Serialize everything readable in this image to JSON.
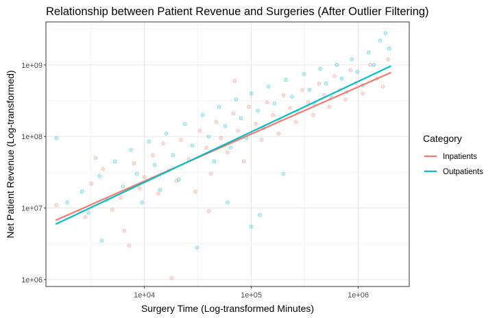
{
  "chart_data": {
    "type": "scatter",
    "title": "Relationship between Patient Revenue and Surgeries (After Outlier Filtering)",
    "xlabel": "Surgery Time (Log-transformed Minutes)",
    "ylabel": "Net Patient Revenue (Log-transformed)",
    "x_scale": "log10",
    "y_scale": "log10",
    "xlim": [
      1200,
      3000000
    ],
    "ylim": [
      800000,
      4000000000
    ],
    "x_ticks": [
      "1e+04",
      "1e+05",
      "1e+06"
    ],
    "x_tick_values": [
      10000,
      100000,
      1000000
    ],
    "y_ticks": [
      "1e+06",
      "1e+07",
      "1e+08",
      "1e+09"
    ],
    "y_tick_values": [
      1000000,
      10000000,
      100000000,
      1000000000
    ],
    "grid": true,
    "legend": {
      "title": "Category",
      "position": "right"
    },
    "series": [
      {
        "name": "Inpatients",
        "color": "#F8766D",
        "trend_line": {
          "x": [
            1500,
            2000000
          ],
          "y": [
            6800000,
            780000000
          ]
        },
        "points": [
          [
            1500,
            11000000
          ],
          [
            2500,
            9000000
          ],
          [
            3200,
            22000000
          ],
          [
            4100,
            35000000
          ],
          [
            5000,
            9500000
          ],
          [
            6000,
            14000000
          ],
          [
            7200,
            3000000
          ],
          [
            8000,
            42000000
          ],
          [
            9000,
            19000000
          ],
          [
            10000,
            27000000
          ],
          [
            12000,
            55000000
          ],
          [
            13500,
            16000000
          ],
          [
            15000,
            80000000
          ],
          [
            17000,
            34000000
          ],
          [
            20000,
            24000000
          ],
          [
            22000,
            90000000
          ],
          [
            26000,
            48000000
          ],
          [
            30000,
            17000000
          ],
          [
            33000,
            120000000
          ],
          [
            38000,
            70000000
          ],
          [
            42000,
            30000000
          ],
          [
            47000,
            160000000
          ],
          [
            52000,
            95000000
          ],
          [
            60000,
            60000000
          ],
          [
            68000,
            210000000
          ],
          [
            75000,
            120000000
          ],
          [
            85000,
            45000000
          ],
          [
            95000,
            260000000
          ],
          [
            110000,
            150000000
          ],
          [
            125000,
            90000000
          ],
          [
            140000,
            300000000
          ],
          [
            160000,
            200000000
          ],
          [
            180000,
            110000000
          ],
          [
            200000,
            380000000
          ],
          [
            230000,
            250000000
          ],
          [
            260000,
            160000000
          ],
          [
            300000,
            450000000
          ],
          [
            340000,
            300000000
          ],
          [
            380000,
            200000000
          ],
          [
            430000,
            550000000
          ],
          [
            480000,
            380000000
          ],
          [
            540000,
            260000000
          ],
          [
            600000,
            700000000
          ],
          [
            680000,
            450000000
          ],
          [
            760000,
            330000000
          ],
          [
            850000,
            850000000
          ],
          [
            950000,
            560000000
          ],
          [
            1100000,
            400000000
          ],
          [
            1300000,
            1000000000
          ],
          [
            1500000,
            650000000
          ],
          [
            1700000,
            500000000
          ],
          [
            1900000,
            1200000000
          ],
          [
            18000,
            1050000
          ],
          [
            6500,
            4800000
          ],
          [
            40000,
            9000000
          ],
          [
            3500,
            50000000
          ],
          [
            2800,
            7500000
          ],
          [
            70000,
            600000000
          ]
        ]
      },
      {
        "name": "Outpatients",
        "color": "#00BFC4",
        "trend_line": {
          "x": [
            1500,
            2000000
          ],
          "y": [
            6000000,
            960000000
          ]
        },
        "points": [
          [
            1500,
            95000000
          ],
          [
            1900,
            12000000
          ],
          [
            2600,
            17000000
          ],
          [
            3000,
            8500000
          ],
          [
            3800,
            28000000
          ],
          [
            4500,
            13000000
          ],
          [
            5300,
            45000000
          ],
          [
            6300,
            20000000
          ],
          [
            7500,
            65000000
          ],
          [
            8500,
            30000000
          ],
          [
            9500,
            12000000
          ],
          [
            11000,
            85000000
          ],
          [
            12500,
            40000000
          ],
          [
            14000,
            18000000
          ],
          [
            16000,
            110000000
          ],
          [
            18500,
            55000000
          ],
          [
            21000,
            25000000
          ],
          [
            24000,
            150000000
          ],
          [
            28000,
            75000000
          ],
          [
            31000,
            2800000
          ],
          [
            35000,
            200000000
          ],
          [
            40000,
            100000000
          ],
          [
            45000,
            45000000
          ],
          [
            50000,
            260000000
          ],
          [
            57000,
            140000000
          ],
          [
            64000,
            70000000
          ],
          [
            72000,
            330000000
          ],
          [
            80000,
            180000000
          ],
          [
            90000,
            95000000
          ],
          [
            100000,
            400000000
          ],
          [
            115000,
            230000000
          ],
          [
            130000,
            130000000
          ],
          [
            145000,
            500000000
          ],
          [
            165000,
            290000000
          ],
          [
            185000,
            170000000
          ],
          [
            210000,
            620000000
          ],
          [
            240000,
            360000000
          ],
          [
            270000,
            220000000
          ],
          [
            310000,
            750000000
          ],
          [
            350000,
            450000000
          ],
          [
            390000,
            280000000
          ],
          [
            440000,
            880000000
          ],
          [
            500000,
            550000000
          ],
          [
            560000,
            350000000
          ],
          [
            630000,
            1000000000
          ],
          [
            700000,
            650000000
          ],
          [
            780000,
            420000000
          ],
          [
            870000,
            1200000000
          ],
          [
            980000,
            800000000
          ],
          [
            1100000,
            520000000
          ],
          [
            1250000,
            1500000000
          ],
          [
            1400000,
            1000000000
          ],
          [
            1600000,
            2200000000
          ],
          [
            1800000,
            2800000000
          ],
          [
            1950000,
            1700000000
          ],
          [
            100000,
            5500000
          ],
          [
            120000,
            8000000
          ],
          [
            60000,
            12000000
          ],
          [
            200000,
            30000000
          ],
          [
            4000,
            3500000
          ]
        ]
      }
    ]
  }
}
